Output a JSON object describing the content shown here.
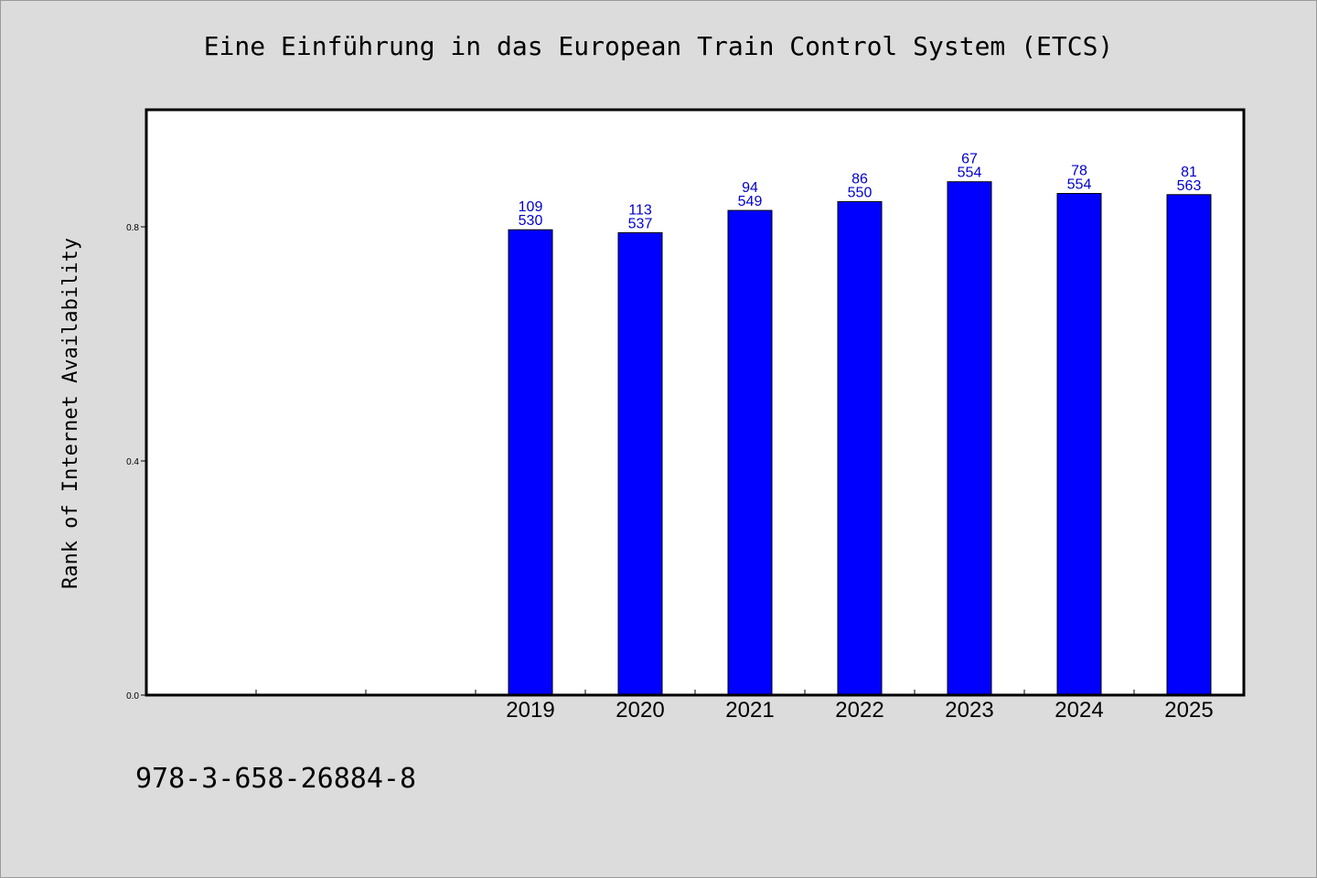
{
  "title": "Eine Einführung in das European Train Control System (ETCS)",
  "isbn": "978-3-658-26884-8",
  "colors": {
    "background": "#dcdcdc",
    "plot_bg": "#ffffff",
    "bar": "#0000ff",
    "label": "#0000cc"
  },
  "chart_data": {
    "type": "bar",
    "title": "Eine Einführung in das European Train Control System (ETCS)",
    "xlabel": "",
    "ylabel": "Rank of Internet Availability",
    "ylim": [
      0.0,
      1.0
    ],
    "yticks": [
      "0.0",
      "0.4",
      "0.8"
    ],
    "ytick_values": [
      0.0,
      0.4,
      0.8
    ],
    "slots": 10,
    "categories": [
      "2019",
      "2020",
      "2021",
      "2022",
      "2023",
      "2024",
      "2025"
    ],
    "category_slots": [
      3,
      4,
      5,
      6,
      7,
      8,
      9
    ],
    "values": [
      0.795,
      0.79,
      0.828,
      0.843,
      0.877,
      0.857,
      0.855
    ],
    "labels_top": [
      "109",
      "113",
      "94",
      "86",
      "67",
      "78",
      "81"
    ],
    "labels_bottom": [
      "530",
      "537",
      "549",
      "550",
      "554",
      "554",
      "563"
    ],
    "grid": false,
    "legend": "none"
  }
}
